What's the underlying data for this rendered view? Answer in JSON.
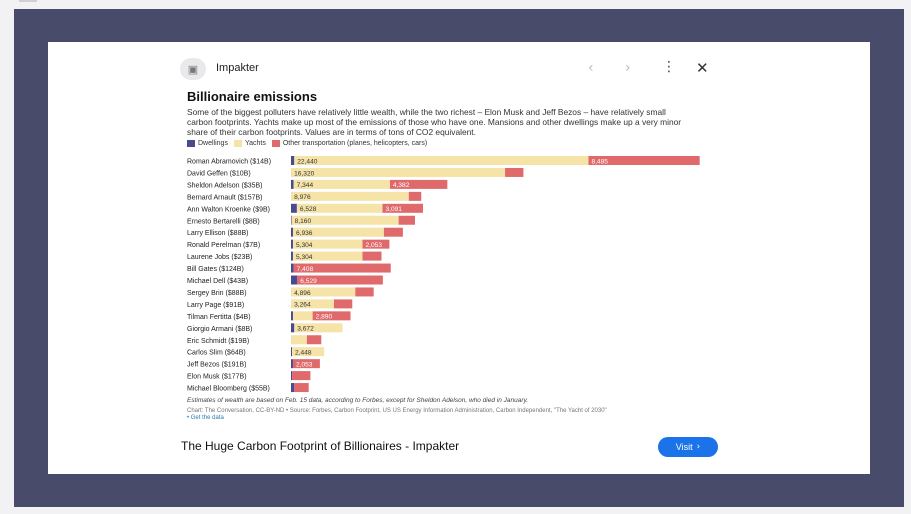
{
  "source": {
    "name": "Impakter",
    "logo_icon": "image-placeholder-icon",
    "prev_icon": "chevron-left-icon",
    "next_icon": "chevron-right-icon",
    "menu_icon": "more-vert-icon",
    "close_icon": "close-icon"
  },
  "chart_data": {
    "type": "bar",
    "orientation": "horizontal",
    "stacked": true,
    "title": "Billionaire emissions",
    "subtitle": "Some of the biggest polluters have relatively little wealth, while the two richest – Elon Musk and Jeff Bezos – have relatively small carbon footprints. Yachts make up most of the emissions of those who have one. Mansions and other dwellings make up a very minor share of their carbon footprints. Values are in terms of tons of CO2 equivalent.",
    "legend_position": "top-left",
    "categories": [
      "Roman Abramovich ($14B)",
      "David Geffen ($10B)",
      "Sheldon Adelson ($35B)",
      "Bernard Arnault ($157B)",
      "Ann Walton Kroenke ($9B)",
      "Ernesto Bertarelli ($8B)",
      "Larry Ellison ($88B)",
      "Ronald Perelman ($7B)",
      "Laurene Jobs ($23B)",
      "Bill Gates ($124B)",
      "Michael Dell ($43B)",
      "Sergey Brin ($88B)",
      "Larry Page ($91B)",
      "Tilman Fertitta ($4B)",
      "Giorgio Armani ($8B)",
      "Eric Schmidt ($19B)",
      "Carlos Slim ($64B)",
      "Jeff Bezos ($191B)",
      "Elon Musk ($177B)",
      "Michael Bloomberg ($55B)"
    ],
    "series": [
      {
        "name": "Dwellings",
        "color": "#4a4a8f",
        "values": [
          250,
          10,
          200,
          10,
          450,
          50,
          150,
          150,
          150,
          200,
          480,
          10,
          10,
          150,
          250,
          10,
          80,
          150,
          80,
          250
        ]
      },
      {
        "name": "Yachts",
        "color": "#f5e3a8",
        "values": [
          22440,
          16320,
          7344,
          8976,
          6528,
          8160,
          6936,
          5304,
          5304,
          0,
          0,
          4896,
          3264,
          1500,
          3672,
          1200,
          2448,
          0,
          0,
          0
        ]
      },
      {
        "name": "Other transportation (planes, helicopters, cars)",
        "color": "#e0696b",
        "values": [
          8485,
          1400,
          4382,
          950,
          3091,
          1250,
          1450,
          2053,
          1450,
          7408,
          6529,
          1400,
          1400,
          2890,
          0,
          1100,
          0,
          2053,
          1400,
          1100
        ]
      }
    ],
    "data_labels": [
      {
        "row": 0,
        "series": 1,
        "text": "22,440"
      },
      {
        "row": 0,
        "series": 2,
        "text": "8,485"
      },
      {
        "row": 1,
        "series": 1,
        "text": "16,320"
      },
      {
        "row": 2,
        "series": 1,
        "text": "7,344"
      },
      {
        "row": 2,
        "series": 2,
        "text": "4,382"
      },
      {
        "row": 3,
        "series": 1,
        "text": "8,976"
      },
      {
        "row": 4,
        "series": 1,
        "text": "6,528"
      },
      {
        "row": 4,
        "series": 2,
        "text": "3,091"
      },
      {
        "row": 5,
        "series": 1,
        "text": "8,160"
      },
      {
        "row": 6,
        "series": 1,
        "text": "6,936"
      },
      {
        "row": 7,
        "series": 1,
        "text": "5,304"
      },
      {
        "row": 7,
        "series": 2,
        "text": "2,053"
      },
      {
        "row": 8,
        "series": 1,
        "text": "5,304"
      },
      {
        "row": 9,
        "series": 2,
        "text": "7,408"
      },
      {
        "row": 10,
        "series": 2,
        "text": "6,529"
      },
      {
        "row": 11,
        "series": 1,
        "text": "4,896"
      },
      {
        "row": 12,
        "series": 1,
        "text": "3,264"
      },
      {
        "row": 13,
        "series": 2,
        "text": "2,890"
      },
      {
        "row": 14,
        "series": 1,
        "text": "3,672"
      },
      {
        "row": 16,
        "series": 1,
        "text": "2,448"
      },
      {
        "row": 17,
        "series": 2,
        "text": "2,053"
      }
    ],
    "xlim": [
      0,
      31200
    ],
    "footnote": "Estimates of wealth are based on Feb. 15 data, according to Forbes, except for Sheldon Adelson, who died in January.",
    "credit": "Chart: The Conversation, CC-BY-ND • Source: Forbes, Carbon Footprint, US US Energy Information Administration, Carbon Independent, \"The Yacht of 2030\"",
    "link_text": "• Get the data"
  },
  "caption": "The Huge Carbon Footprint of Billionaires - Impakter",
  "visit_button": {
    "label": "Visit",
    "icon": "chevron-right-icon"
  }
}
